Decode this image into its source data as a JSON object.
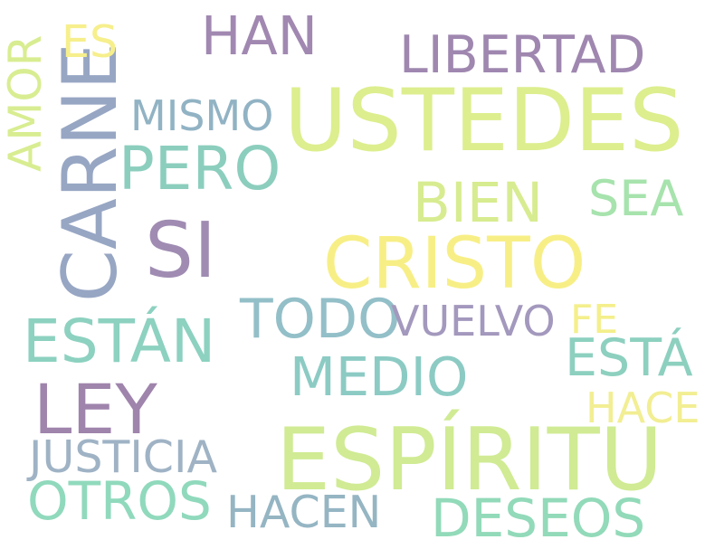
{
  "words": [
    {
      "text": "USTEDES",
      "color": "#dcee8e"
    },
    {
      "text": "ESPÍRITU",
      "color": "#d0eb94"
    },
    {
      "text": "CARNE",
      "color": "#97a6c3"
    },
    {
      "text": "CRISTO",
      "color": "#f7ef86"
    },
    {
      "text": "SI",
      "color": "#a08cb2"
    },
    {
      "text": "LEY",
      "color": "#9f84ac"
    },
    {
      "text": "ESTÁN",
      "color": "#8dd1c0"
    },
    {
      "text": "PERO",
      "color": "#8ccebe"
    },
    {
      "text": "BIEN",
      "color": "#d7ec90"
    },
    {
      "text": "LIBERTAD",
      "color": "#9f87b0"
    },
    {
      "text": "TODO",
      "color": "#93bfc8"
    },
    {
      "text": "MEDIO",
      "color": "#8ccbc4"
    },
    {
      "text": "DESEOS",
      "color": "#92dab9"
    },
    {
      "text": "OTROS",
      "color": "#90d9bd"
    },
    {
      "text": "HAN",
      "color": "#a188b1"
    },
    {
      "text": "ESTÁ",
      "color": "#8dd0bf"
    },
    {
      "text": "JUSTICIA",
      "color": "#9fb3c5"
    },
    {
      "text": "HACEN",
      "color": "#95b5c3"
    },
    {
      "text": "VUELVO",
      "color": "#a398bd"
    },
    {
      "text": "SEA",
      "color": "#a7e3ad"
    },
    {
      "text": "MISMO",
      "color": "#91b3c4"
    },
    {
      "text": "AMOR",
      "color": "#d8ed91"
    },
    {
      "text": "ES",
      "color": "#f6ef8c"
    },
    {
      "text": "HACE",
      "color": "#f2ee93"
    },
    {
      "text": "FE",
      "color": "#f4ef8b"
    }
  ]
}
